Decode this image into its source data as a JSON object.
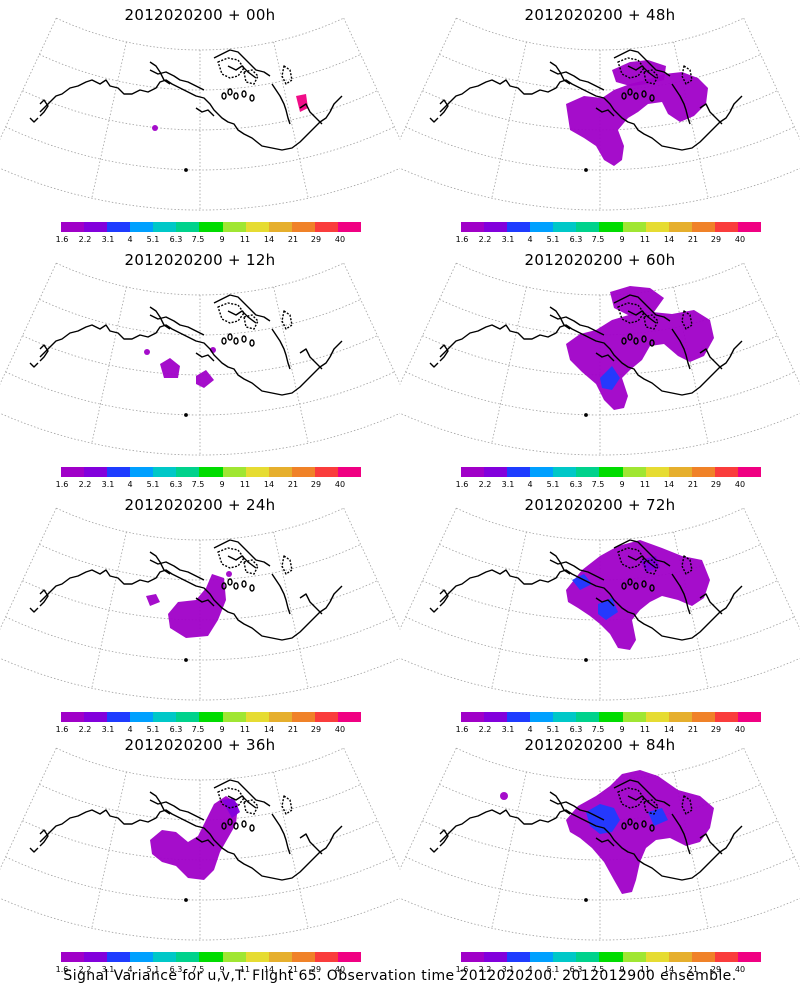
{
  "panels": [
    {
      "title": "2012020200 + 00h",
      "shading": "h00"
    },
    {
      "title": "2012020200 + 48h",
      "shading": "h48"
    },
    {
      "title": "2012020200 + 12h",
      "shading": "h12"
    },
    {
      "title": "2012020200 + 60h",
      "shading": "h60"
    },
    {
      "title": "2012020200 + 24h",
      "shading": "h24"
    },
    {
      "title": "2012020200 + 72h",
      "shading": "h72"
    },
    {
      "title": "2012020200 + 36h",
      "shading": "h36"
    },
    {
      "title": "2012020200 + 84h",
      "shading": "h84"
    }
  ],
  "colorbar": {
    "labels": [
      "1.6",
      "2.2",
      "3.1",
      "4",
      "5.1",
      "6.3",
      "7.5",
      "9",
      "11",
      "14",
      "21",
      "29",
      "40"
    ],
    "colors": [
      "#a000c8",
      "#8200dc",
      "#1e3cff",
      "#00a0ff",
      "#00c8c8",
      "#00d28c",
      "#00dc00",
      "#a0e632",
      "#e6dc32",
      "#e6af2d",
      "#f08228",
      "#fa3c3c",
      "#f00082"
    ]
  },
  "caption": "Signal Variance for u,v,T. Flight 65. Observation time 2012020200. 2012012900 ensemble."
}
